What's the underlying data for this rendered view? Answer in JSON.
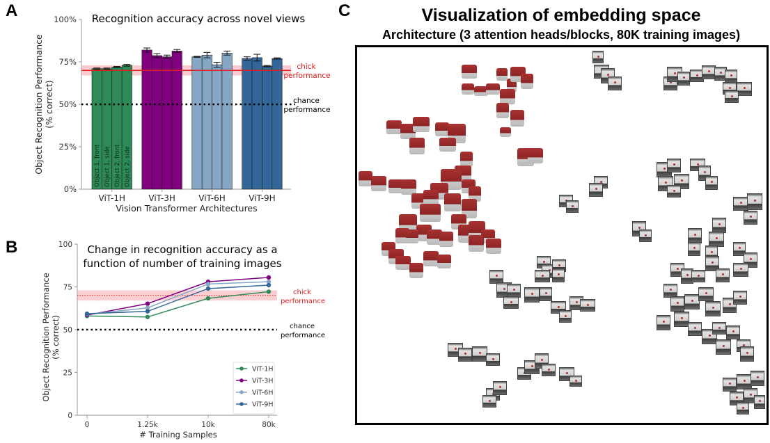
{
  "panels": {
    "A": {
      "letter": "A"
    },
    "B": {
      "letter": "B"
    },
    "C": {
      "letter": "C"
    }
  },
  "chart_data": [
    {
      "id": "A",
      "type": "bar",
      "title": "Recognition accuracy across novel views",
      "xlabel": "Vision Transformer Architectures",
      "ylabel": "Object Recognition Performance",
      "ylabel2": "(% correct)",
      "ylim": [
        0,
        100
      ],
      "yticks": [
        0,
        25,
        50,
        75,
        100
      ],
      "ytick_labels": [
        "0%",
        "25%",
        "50%",
        "75%",
        "100%"
      ],
      "categories": [
        "ViT-1H",
        "ViT-3H",
        "ViT-6H",
        "ViT-9H"
      ],
      "bar_labels": [
        "Object 1, front",
        "Object 1, side",
        "Object 2, front",
        "Object 2, side"
      ],
      "series": [
        {
          "name": "ViT-1H",
          "color": "#2e8b57",
          "values": [
            71,
            71,
            72,
            73
          ],
          "errors": [
            0.4,
            0.4,
            0.3,
            0.5
          ]
        },
        {
          "name": "ViT-3H",
          "color": "#800080",
          "values": [
            82,
            78.7,
            78,
            81.4
          ],
          "errors": [
            1.2,
            1.2,
            1.0,
            0.9
          ]
        },
        {
          "name": "ViT-6H",
          "color": "#86a6c6",
          "values": [
            78,
            79,
            73.3,
            80.2
          ],
          "errors": [
            0.3,
            1.6,
            1.5,
            1.2
          ]
        },
        {
          "name": "ViT-9H",
          "color": "#336699",
          "values": [
            77,
            77.5,
            72.5,
            77
          ],
          "errors": [
            1.0,
            2.0,
            0.4,
            0.4
          ]
        }
      ],
      "reference_lines": [
        {
          "name": "chick",
          "value": 70,
          "band": [
            67,
            73
          ],
          "color": "#e31a1c",
          "label_line1": "chick",
          "label_line2": "performance",
          "style": "solid"
        },
        {
          "name": "chance",
          "value": 50,
          "color": "#000000",
          "label_line1": "chance",
          "label_line2": "performance",
          "style": "dotted"
        }
      ],
      "grid": false
    },
    {
      "id": "B",
      "type": "line",
      "title_line1": "Change in recognition accuracy as a",
      "title_line2": "function of number of training images",
      "xlabel": "# Training Samples",
      "ylabel": "Object Recognition Performance",
      "ylabel2": "(% correct)",
      "ylim": [
        0,
        100
      ],
      "yticks": [
        0,
        25,
        50,
        75,
        100
      ],
      "ytick_labels": [
        "0",
        "25",
        "50",
        "75",
        "100"
      ],
      "x": [
        "0",
        "1.25k",
        "10k",
        "80k"
      ],
      "series": [
        {
          "name": "ViT-1H",
          "color": "#2e8b57",
          "values": [
            58,
            57.4,
            68.3,
            72.2
          ]
        },
        {
          "name": "ViT-3H",
          "color": "#800080",
          "values": [
            58.5,
            65.2,
            78,
            80.5
          ]
        },
        {
          "name": "ViT-6H",
          "color": "#86a6c6",
          "values": [
            59,
            62.7,
            76.7,
            78
          ]
        },
        {
          "name": "ViT-9H",
          "color": "#336699",
          "values": [
            59.3,
            60.7,
            74,
            76
          ]
        }
      ],
      "reference_lines": [
        {
          "name": "chick",
          "value": 70,
          "band": [
            67,
            73
          ],
          "color": "#e31a1c",
          "label_line1": "chick",
          "label_line2": "performance",
          "style": "dotted"
        },
        {
          "name": "chance",
          "value": 50,
          "color": "#000000",
          "label_line1": "chance",
          "label_line2": "performance",
          "style": "dotted"
        }
      ],
      "legend": "lower-right",
      "grid": false
    }
  ],
  "embedding": {
    "title": "Visualization of embedding space",
    "subtitle": "Architecture (3 attention heads/blocks, 80K training images)",
    "groups": [
      {
        "name": "object-1",
        "color": "#a83232"
      },
      {
        "name": "object-2",
        "color": "#5a5a5a"
      }
    ]
  }
}
